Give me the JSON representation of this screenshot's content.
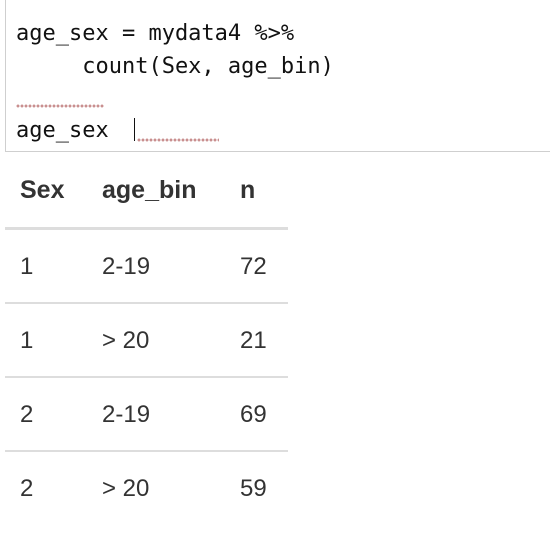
{
  "code_cell": {
    "line1": "age_sex = mydata4 %>%",
    "line2": "     count(Sex, age_bin)",
    "line3": "",
    "line4": "age_sex"
  },
  "table": {
    "headers": [
      "Sex",
      "age_bin",
      "n"
    ],
    "rows": [
      [
        "1",
        "2-19",
        "72"
      ],
      [
        "1",
        "> 20",
        "21"
      ],
      [
        "2",
        "2-19",
        "69"
      ],
      [
        "2",
        "> 20",
        "59"
      ]
    ]
  }
}
